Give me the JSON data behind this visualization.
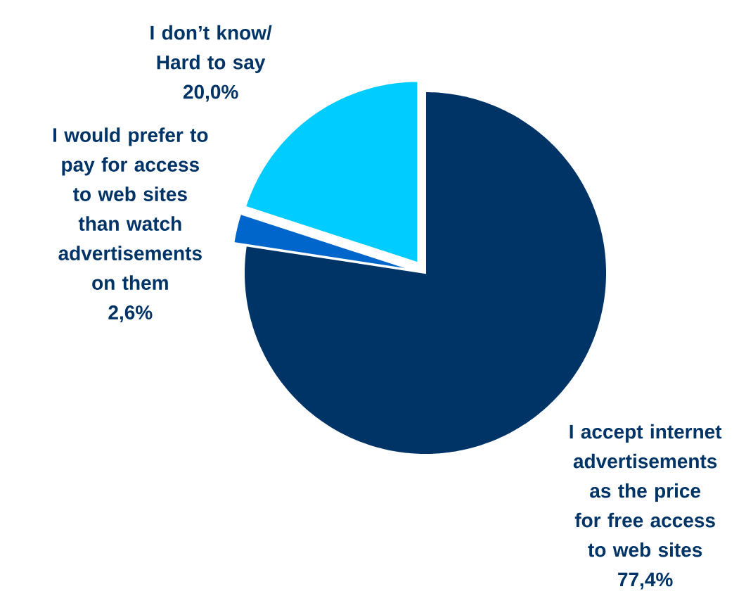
{
  "chart_data": {
    "type": "pie",
    "categories": [
      "I accept internet advertisements as the price for free access to web sites",
      "I would prefer to pay for access to web sites than watch advertisements on them",
      "I don’t know/ Hard to say"
    ],
    "values": [
      77.4,
      2.6,
      20.0
    ],
    "value_labels": [
      "77,4%",
      "2,6%",
      "20,0%"
    ],
    "colors": [
      "#003366",
      "#0066cc",
      "#00ccff"
    ]
  }
}
